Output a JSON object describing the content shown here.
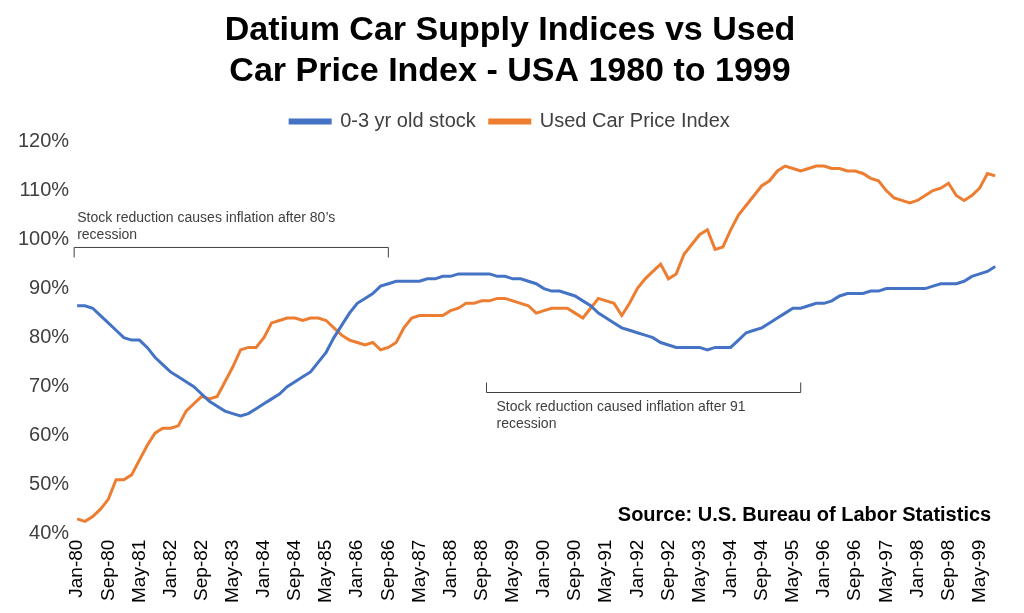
{
  "chart_data": {
    "type": "line",
    "title": [
      "Datium Car Supply Indices vs Used",
      "Car Price Index - USA 1980 to 1999"
    ],
    "source": "Source: U.S. Bureau of Labor Statistics",
    "annotations": [
      {
        "text": "Stock reduction causes inflation after 80’s recession"
      },
      {
        "text": "Stock reduction caused inflation after 91 recession"
      }
    ],
    "legend": "top",
    "grid": false,
    "categories": [
      "Jan-80",
      null,
      null,
      null,
      "Sep-80",
      null,
      null,
      null,
      "May-81",
      null,
      null,
      null,
      "Jan-82",
      null,
      null,
      null,
      "Sep-82",
      null,
      null,
      null,
      "May-83",
      null,
      null,
      null,
      "Jan-84",
      null,
      null,
      null,
      "Sep-84",
      null,
      null,
      null,
      "May-85",
      null,
      null,
      null,
      "Jan-86",
      null,
      null,
      null,
      "Sep-86",
      null,
      null,
      null,
      "May-87",
      null,
      null,
      null,
      "Jan-88",
      null,
      null,
      null,
      "Sep-88",
      null,
      null,
      null,
      "May-89",
      null,
      null,
      null,
      "Jan-90",
      null,
      null,
      null,
      "Sep-90",
      null,
      null,
      null,
      "May-91",
      null,
      null,
      null,
      "Jan-92",
      null,
      null,
      null,
      "Sep-92",
      null,
      null,
      null,
      "May-93",
      null,
      null,
      null,
      "Jan-94",
      null,
      null,
      null,
      "Sep-94",
      null,
      null,
      null,
      "May-95",
      null,
      null,
      null,
      "Jan-96",
      null,
      null,
      null,
      "Sep-96",
      null,
      null,
      null,
      "May-97",
      null,
      null,
      null,
      "Jan-98",
      null,
      null,
      null,
      "Sep-98",
      null,
      null,
      null,
      "May-99",
      null,
      null
    ],
    "series": [
      {
        "name": "0-3 yr old stock",
        "color": "#4472c4",
        "values": [
          86.5,
          86.5,
          86,
          84.5,
          83,
          81.5,
          80,
          79.5,
          79.5,
          78,
          76,
          74.5,
          73,
          72,
          71,
          70,
          68.5,
          67,
          66,
          65,
          64.5,
          64,
          64.5,
          65.5,
          66.5,
          67.5,
          68.5,
          70,
          71,
          72,
          73,
          75,
          77,
          80,
          82.5,
          85,
          87,
          88,
          89,
          90.5,
          91,
          91.5,
          91.5,
          91.5,
          91.5,
          92,
          92,
          92.5,
          92.5,
          93,
          93,
          93,
          93,
          93,
          92.5,
          92.5,
          92,
          92,
          91.5,
          91,
          90,
          89.5,
          89.5,
          89,
          88.5,
          87.5,
          86.5,
          85,
          84,
          83,
          82,
          81.5,
          81,
          80.5,
          80,
          79,
          78.5,
          78,
          78,
          78,
          78,
          77.5,
          78,
          78,
          78,
          79.5,
          81,
          81.5,
          82,
          83,
          84,
          85,
          86,
          86,
          86.5,
          87,
          87,
          87.5,
          88.5,
          89,
          89,
          89,
          89.5,
          89.5,
          90,
          90,
          90,
          90,
          90,
          90,
          90.5,
          91,
          91,
          91,
          91.5,
          92.5,
          93,
          93.5,
          94.5
        ]
      },
      {
        "name": "Used Car Price Index",
        "color": "#ed7d31",
        "values": [
          43,
          42.5,
          43.5,
          45,
          47,
          51,
          51,
          52,
          55,
          58,
          60.5,
          61.5,
          61.5,
          62,
          65,
          66.5,
          68,
          67.5,
          68,
          71,
          74,
          77.5,
          78,
          78,
          80,
          83,
          83.5,
          84,
          84,
          83.5,
          84,
          84,
          83.5,
          82,
          80.5,
          79.5,
          79,
          78.5,
          79,
          77.5,
          78,
          79,
          82,
          84,
          84.5,
          84.5,
          84.5,
          84.5,
          85.5,
          86,
          87,
          87,
          87.5,
          87.5,
          88,
          88,
          87.5,
          87,
          86.5,
          85,
          85.5,
          86,
          86,
          86,
          85,
          84,
          86,
          88,
          87.5,
          87,
          84.5,
          87,
          90,
          92,
          93.5,
          95,
          92,
          93,
          97,
          99,
          101,
          102,
          98,
          98.5,
          102,
          105,
          107,
          109,
          111,
          112,
          114,
          115,
          114.5,
          114,
          114.5,
          115,
          115,
          114.5,
          114.5,
          114,
          114,
          113.5,
          112.5,
          112,
          110,
          108.5,
          108,
          107.5,
          108,
          109,
          110,
          110.5,
          111.5,
          109,
          108,
          109,
          110.5,
          113.5,
          113
        ]
      }
    ],
    "ylim": [
      40,
      120
    ],
    "yticks": [
      {
        "value": 40,
        "label": "40%"
      },
      {
        "value": 50,
        "label": "50%"
      },
      {
        "value": 60,
        "label": "60%"
      },
      {
        "value": 70,
        "label": "70%"
      },
      {
        "value": 80,
        "label": "80%"
      },
      {
        "value": 90,
        "label": "90%"
      },
      {
        "value": 100,
        "label": "100%"
      },
      {
        "value": 110,
        "label": "110%"
      },
      {
        "value": 120,
        "label": "120%"
      }
    ]
  }
}
